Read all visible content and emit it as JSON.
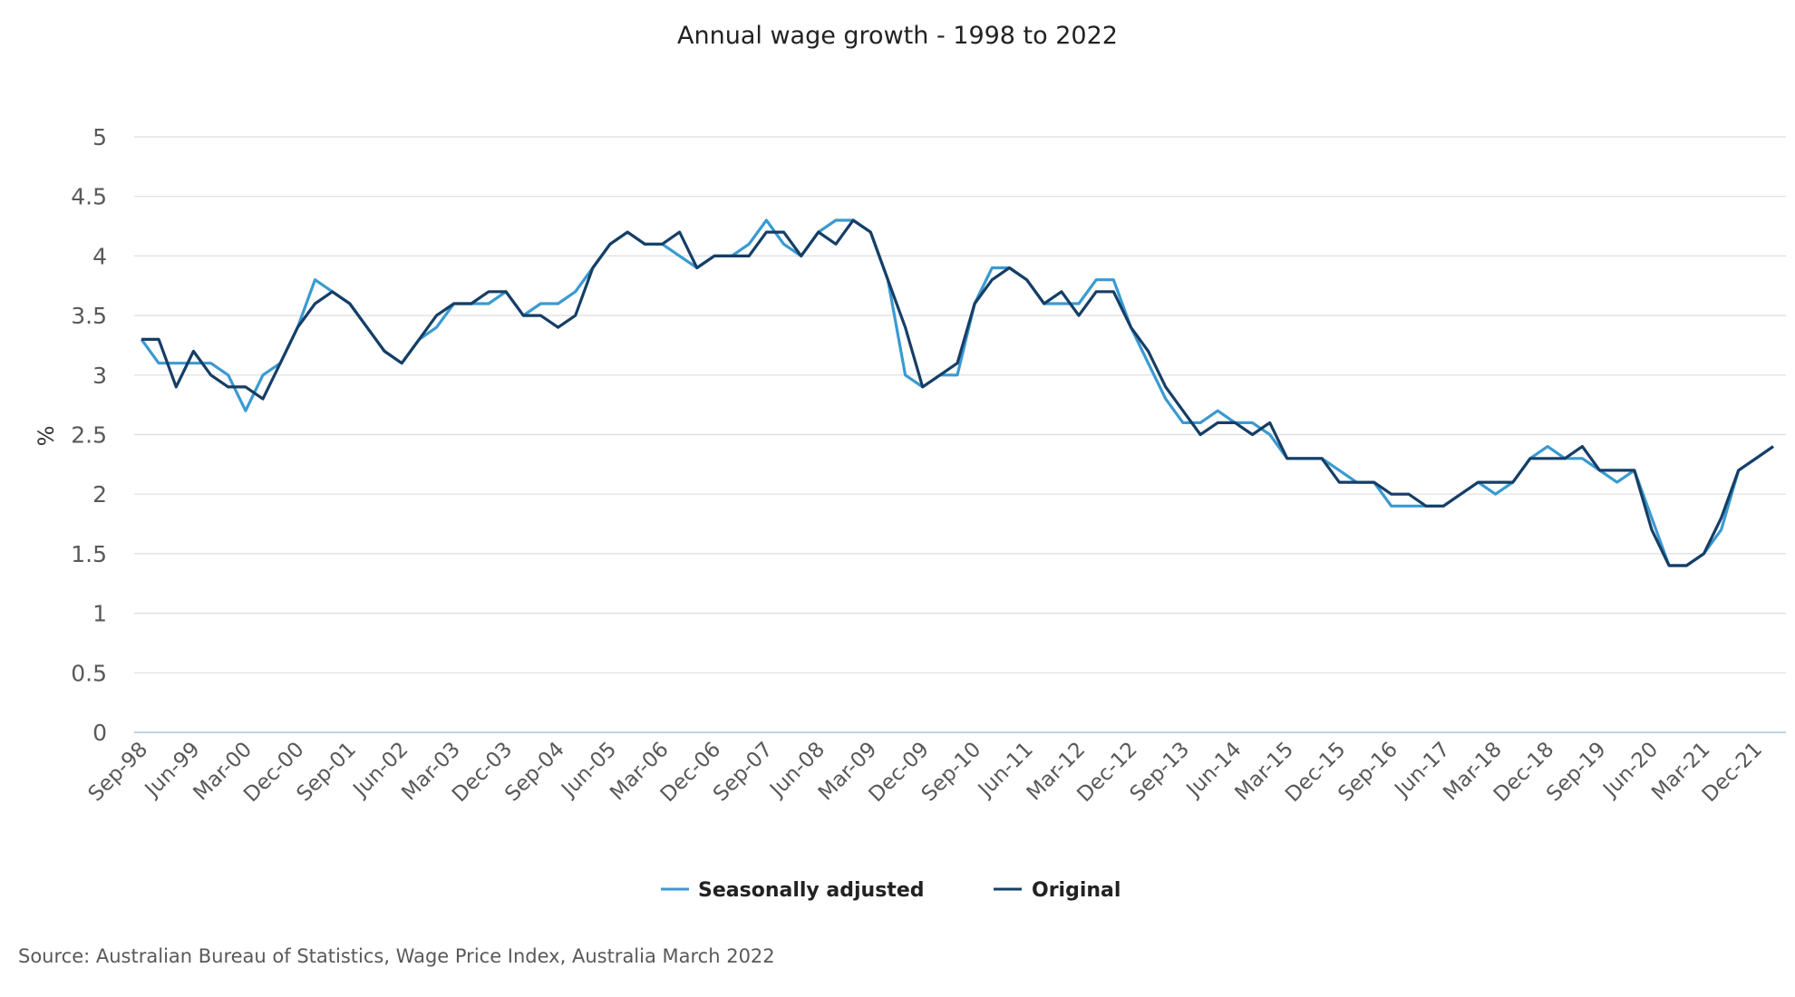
{
  "chart_data": {
    "type": "line",
    "title": "Annual wage growth - 1998 to 2022",
    "ylabel": "%",
    "xlabel": "",
    "ylim": [
      0,
      5
    ],
    "yticks": [
      "0",
      "0.5",
      "1",
      "1.5",
      "2",
      "2.5",
      "3",
      "3.5",
      "4",
      "4.5",
      "5"
    ],
    "grid": true,
    "legend_position": "bottom",
    "x": [
      "Sep-98",
      "Dec-98",
      "Mar-99",
      "Jun-99",
      "Sep-99",
      "Dec-99",
      "Mar-00",
      "Jun-00",
      "Sep-00",
      "Dec-00",
      "Mar-01",
      "Jun-01",
      "Sep-01",
      "Dec-01",
      "Mar-02",
      "Jun-02",
      "Sep-02",
      "Dec-02",
      "Mar-03",
      "Jun-03",
      "Sep-03",
      "Dec-03",
      "Mar-04",
      "Jun-04",
      "Sep-04",
      "Dec-04",
      "Mar-05",
      "Jun-05",
      "Sep-05",
      "Dec-05",
      "Mar-06",
      "Jun-06",
      "Sep-06",
      "Dec-06",
      "Mar-07",
      "Jun-07",
      "Sep-07",
      "Dec-07",
      "Mar-08",
      "Jun-08",
      "Sep-08",
      "Dec-08",
      "Mar-09",
      "Jun-09",
      "Sep-09",
      "Dec-09",
      "Mar-10",
      "Jun-10",
      "Sep-10",
      "Dec-10",
      "Mar-11",
      "Jun-11",
      "Sep-11",
      "Dec-11",
      "Mar-12",
      "Jun-12",
      "Sep-12",
      "Dec-12",
      "Mar-13",
      "Jun-13",
      "Sep-13",
      "Dec-13",
      "Mar-14",
      "Jun-14",
      "Sep-14",
      "Dec-14",
      "Mar-15",
      "Jun-15",
      "Sep-15",
      "Dec-15",
      "Mar-16",
      "Jun-16",
      "Sep-16",
      "Dec-16",
      "Mar-17",
      "Jun-17",
      "Sep-17",
      "Dec-17",
      "Mar-18",
      "Jun-18",
      "Sep-18",
      "Dec-18",
      "Mar-19",
      "Jun-19",
      "Sep-19",
      "Dec-19",
      "Mar-20",
      "Jun-20",
      "Sep-20",
      "Dec-20",
      "Mar-21",
      "Jun-21",
      "Sep-21",
      "Dec-21",
      "Mar-22"
    ],
    "x_tick_labels": [
      "Sep-98",
      "Jun-99",
      "Mar-00",
      "Dec-00",
      "Sep-01",
      "Jun-02",
      "Mar-03",
      "Dec-03",
      "Sep-04",
      "Jun-05",
      "Mar-06",
      "Dec-06",
      "Sep-07",
      "Jun-08",
      "Mar-09",
      "Dec-09",
      "Sep-10",
      "Jun-11",
      "Mar-12",
      "Dec-12",
      "Sep-13",
      "Jun-14",
      "Mar-15",
      "Dec-15",
      "Sep-16",
      "Jun-17",
      "Mar-18",
      "Dec-18",
      "Sep-19",
      "Jun-20",
      "Mar-21",
      "Dec-21"
    ],
    "series": [
      {
        "name": "Seasonally adjusted",
        "color": "#3A9AD1",
        "values": [
          3.3,
          3.1,
          3.1,
          3.1,
          3.1,
          3.0,
          2.7,
          3.0,
          3.1,
          3.4,
          3.8,
          3.7,
          3.6,
          3.4,
          3.2,
          3.1,
          3.3,
          3.4,
          3.6,
          3.6,
          3.6,
          3.7,
          3.5,
          3.6,
          3.6,
          3.7,
          3.9,
          4.1,
          4.2,
          4.1,
          4.1,
          4.0,
          3.9,
          4.0,
          4.0,
          4.1,
          4.3,
          4.1,
          4.0,
          4.2,
          4.3,
          4.3,
          4.2,
          3.8,
          3.0,
          2.9,
          3.0,
          3.0,
          3.6,
          3.9,
          3.9,
          3.8,
          3.6,
          3.6,
          3.6,
          3.8,
          3.8,
          3.4,
          3.1,
          2.8,
          2.6,
          2.6,
          2.7,
          2.6,
          2.6,
          2.5,
          2.3,
          2.3,
          2.3,
          2.2,
          2.1,
          2.1,
          1.9,
          1.9,
          1.9,
          1.9,
          2.0,
          2.1,
          2.0,
          2.1,
          2.3,
          2.4,
          2.3,
          2.3,
          2.2,
          2.1,
          2.2,
          1.8,
          1.4,
          1.4,
          1.5,
          1.7,
          2.2,
          2.3,
          2.4
        ]
      },
      {
        "name": "Original",
        "color": "#163E66",
        "values": [
          3.3,
          3.3,
          2.9,
          3.2,
          3.0,
          2.9,
          2.9,
          2.8,
          3.1,
          3.4,
          3.6,
          3.7,
          3.6,
          3.4,
          3.2,
          3.1,
          3.3,
          3.5,
          3.6,
          3.6,
          3.7,
          3.7,
          3.5,
          3.5,
          3.4,
          3.5,
          3.9,
          4.1,
          4.2,
          4.1,
          4.1,
          4.2,
          3.9,
          4.0,
          4.0,
          4.0,
          4.2,
          4.2,
          4.0,
          4.2,
          4.1,
          4.3,
          4.2,
          3.8,
          3.4,
          2.9,
          3.0,
          3.1,
          3.6,
          3.8,
          3.9,
          3.8,
          3.6,
          3.7,
          3.5,
          3.7,
          3.7,
          3.4,
          3.2,
          2.9,
          2.7,
          2.5,
          2.6,
          2.6,
          2.5,
          2.6,
          2.3,
          2.3,
          2.3,
          2.1,
          2.1,
          2.1,
          2.0,
          2.0,
          1.9,
          1.9,
          2.0,
          2.1,
          2.1,
          2.1,
          2.3,
          2.3,
          2.3,
          2.4,
          2.2,
          2.2,
          2.2,
          1.7,
          1.4,
          1.4,
          1.5,
          1.8,
          2.2,
          2.3,
          2.4
        ]
      }
    ]
  },
  "source": "Source: Australian Bureau of Statistics, Wage Price Index, Australia March 2022"
}
